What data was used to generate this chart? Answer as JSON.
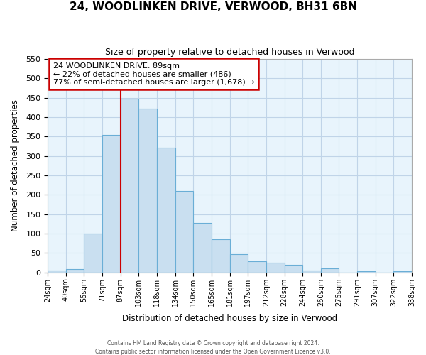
{
  "title": "24, WOODLINKEN DRIVE, VERWOOD, BH31 6BN",
  "subtitle": "Size of property relative to detached houses in Verwood",
  "xlabel": "Distribution of detached houses by size in Verwood",
  "ylabel": "Number of detached properties",
  "bin_labels": [
    "24sqm",
    "40sqm",
    "55sqm",
    "71sqm",
    "87sqm",
    "103sqm",
    "118sqm",
    "134sqm",
    "150sqm",
    "165sqm",
    "181sqm",
    "197sqm",
    "212sqm",
    "228sqm",
    "244sqm",
    "260sqm",
    "275sqm",
    "291sqm",
    "307sqm",
    "322sqm",
    "338sqm"
  ],
  "num_bins": 20,
  "bar_heights": [
    5,
    8,
    101,
    355,
    447,
    422,
    321,
    209,
    128,
    85,
    48,
    29,
    25,
    19,
    5,
    10,
    0,
    4,
    0,
    3
  ],
  "bar_color": "#c9dff0",
  "bar_edge_color": "#6aaed6",
  "property_value_bin": 4,
  "vline_color": "#cc0000",
  "ylim": [
    0,
    550
  ],
  "annotation_line1": "24 WOODLINKEN DRIVE: 89sqm",
  "annotation_line2": "← 22% of detached houses are smaller (486)",
  "annotation_line3": "77% of semi-detached houses are larger (1,678) →",
  "annotation_box_edge_color": "#cc0000",
  "footer_line1": "Contains HM Land Registry data © Crown copyright and database right 2024.",
  "footer_line2": "Contains public sector information licensed under the Open Government Licence v3.0.",
  "grid_color": "#c0d4e8",
  "background_color": "#e8f4fc"
}
